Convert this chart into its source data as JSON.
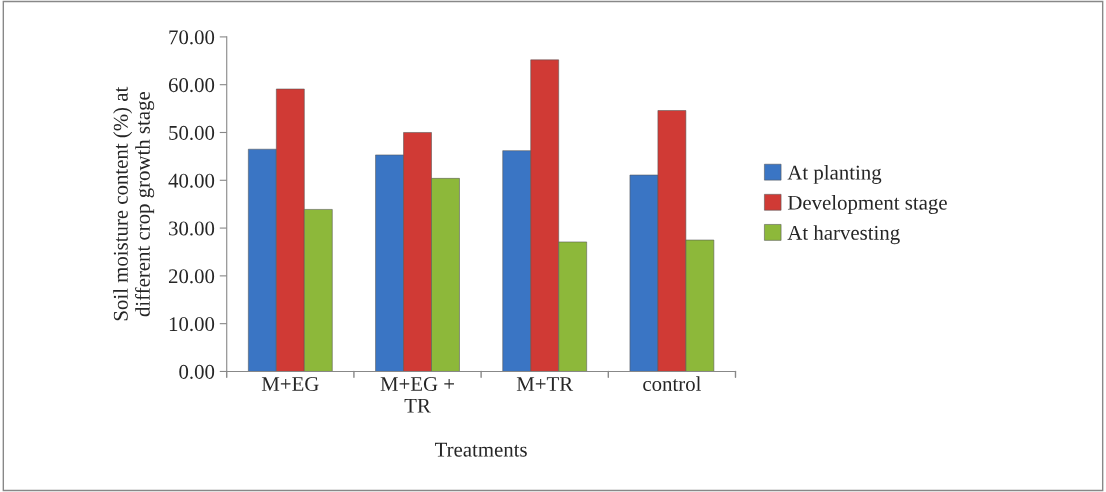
{
  "chart_data": {
    "type": "bar",
    "xlabel": "Treatments",
    "ylabel": "Soil moisture content (%) at\ndifferent crop growth stage",
    "categories": [
      "M+EG",
      "M+EG +\nTR",
      "M+TR",
      "control"
    ],
    "series": [
      {
        "name": "At planting",
        "color": "#3a75c4",
        "values": [
          46.5,
          45.3,
          46.2,
          41.1
        ]
      },
      {
        "name": "Development stage",
        "color": "#d03a35",
        "values": [
          59.1,
          50.0,
          65.2,
          54.6
        ]
      },
      {
        "name": "At harvesting",
        "color": "#8db83a",
        "values": [
          33.9,
          40.4,
          27.1,
          27.5
        ]
      }
    ],
    "ylim": [
      0,
      70
    ],
    "yticks": [
      {
        "value": 0,
        "label": "0.00"
      },
      {
        "value": 10,
        "label": "10.00"
      },
      {
        "value": 20,
        "label": "20.00"
      },
      {
        "value": 30,
        "label": "30.00"
      },
      {
        "value": 40,
        "label": "40.00"
      },
      {
        "value": 50,
        "label": "50.00"
      },
      {
        "value": 60,
        "label": "60.00"
      },
      {
        "value": 70,
        "label": "70.00"
      }
    ],
    "grid": false,
    "legend": "right"
  }
}
